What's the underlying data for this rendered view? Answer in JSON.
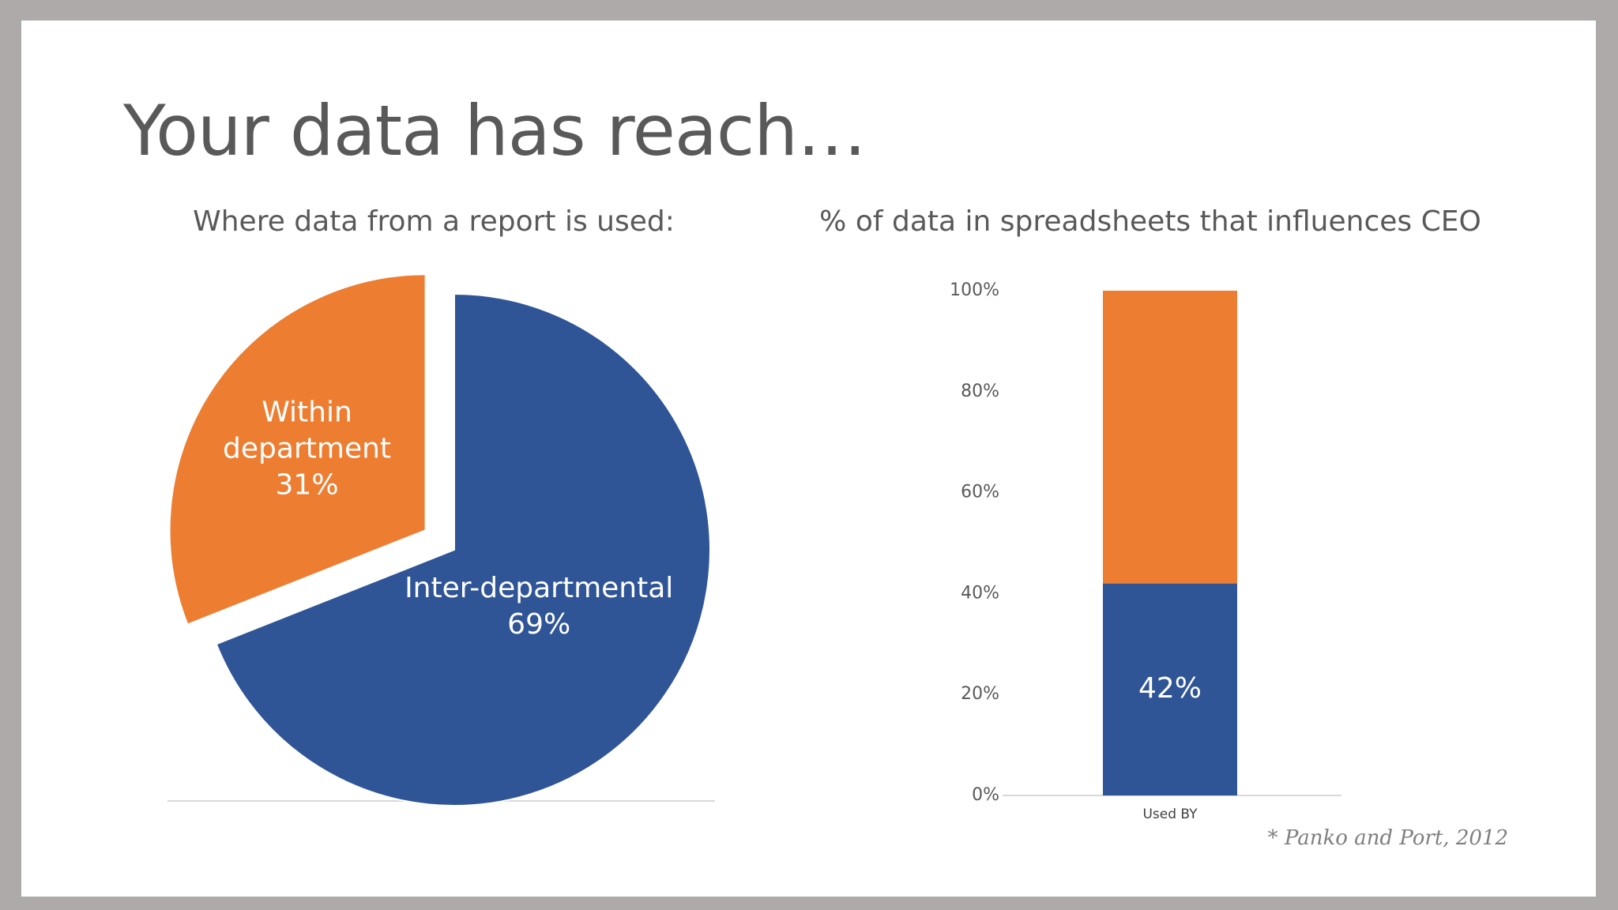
{
  "slide": {
    "title": "Your data has reach…",
    "citation": "* Panko and Port, 2012"
  },
  "colors": {
    "orange": "#ed7d31",
    "blue": "#2f5597",
    "axis_text": "#595959",
    "axis_line": "#d9d9d9"
  },
  "chart_data": [
    {
      "type": "pie",
      "title": "Where data from a report is used:",
      "slices": [
        {
          "label": "Inter-departmental",
          "value": 69,
          "value_label": "69%",
          "color": "#2f5597",
          "exploded": false
        },
        {
          "label": "Within department",
          "value": 31,
          "value_label": "31%",
          "color": "#ed7d31",
          "exploded": true
        }
      ]
    },
    {
      "type": "bar",
      "stacked": true,
      "title": "% of data in spreadsheets that influences CEO",
      "categories": [
        "Used BY"
      ],
      "series": [
        {
          "values": [
            42
          ],
          "color": "#2f5597",
          "data_label": "42%"
        },
        {
          "values": [
            58
          ],
          "color": "#ed7d31",
          "data_label": ""
        }
      ],
      "ylim": [
        0,
        100
      ],
      "yticks": [
        "0%",
        "20%",
        "40%",
        "60%",
        "80%",
        "100%"
      ],
      "xlabel": "",
      "ylabel": "",
      "grid": false
    }
  ]
}
